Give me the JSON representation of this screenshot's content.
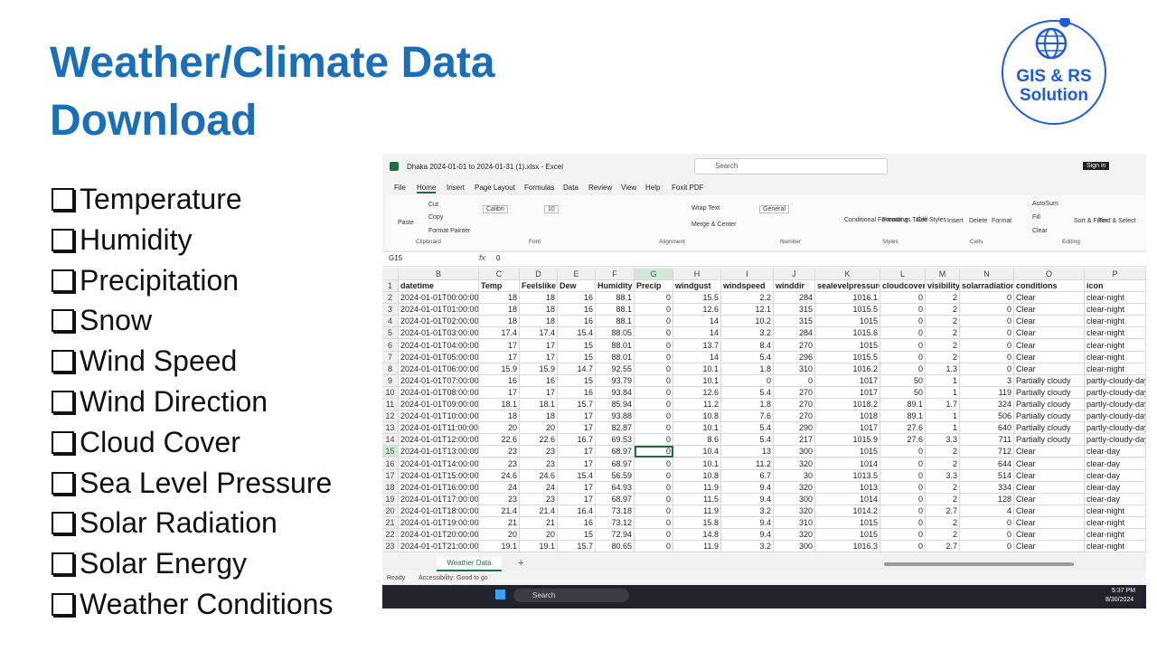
{
  "slide": {
    "title_lines": [
      "Weather/Climate Data",
      "Download"
    ],
    "bullets": [
      "Temperature",
      "Humidity",
      "Precipitation",
      "Snow",
      "Wind Speed",
      "Wind Direction",
      "Cloud Cover",
      "Sea Level Pressure",
      "Solar Radiation",
      "Solar Energy",
      "Weather Conditions"
    ]
  },
  "logo": {
    "line1": "GIS & RS",
    "line2": "Solution"
  },
  "excel": {
    "window_title": "Dhaka 2024-01-01 to 2024-01-31 (1).xlsx  -  Excel",
    "search": "Search",
    "sign_in": "Sign in",
    "menu": [
      "File",
      "Home",
      "Insert",
      "Page Layout",
      "Formulas",
      "Data",
      "Review",
      "View",
      "Help",
      "Foxit PDF"
    ],
    "ribbon": [
      "Paste",
      "Cut",
      "Copy",
      "Format Painter",
      "Calibri",
      "10",
      "Wrap Text",
      "Merge & Center",
      "General",
      "Conditional Formatting",
      "Format as Table",
      "Cell Styles",
      "Insert",
      "Delete",
      "Format",
      "AutoSum",
      "Fill",
      "Clear",
      "Sort & Filter",
      "Find & Select"
    ],
    "groups": [
      "Clipboard",
      "Font",
      "Alignment",
      "Number",
      "Styles",
      "Cells",
      "Editing"
    ],
    "name_box": "G15",
    "fx": "fx",
    "formula": "0",
    "columns": [
      "B",
      "C",
      "D",
      "E",
      "F",
      "G",
      "H",
      "I",
      "J",
      "K",
      "L",
      "M",
      "N",
      "O",
      "P"
    ],
    "row_numbers": [
      1,
      2,
      3,
      4,
      5,
      6,
      7,
      8,
      9,
      10,
      11,
      12,
      13,
      14,
      15,
      16,
      17,
      18,
      19,
      20,
      21,
      22,
      23
    ],
    "header": [
      "datetime",
      "Temp",
      "Feelslike",
      "Dew",
      "Humidity",
      "Precip",
      "windgust",
      "windspeed",
      "winddir",
      "sealevelpressure",
      "cloudcover",
      "visibility",
      "solarradiation",
      "conditions",
      "icon"
    ],
    "rows": [
      [
        "2024-01-01T00:00:00",
        18,
        18,
        16,
        88.1,
        0,
        15.5,
        2.2,
        284,
        1016.1,
        0,
        2,
        0,
        "Clear",
        "clear-night"
      ],
      [
        "2024-01-01T01:00:00",
        18,
        18,
        16,
        88.1,
        0,
        12.6,
        12.1,
        315,
        1015.5,
        0,
        2,
        0,
        "Clear",
        "clear-night"
      ],
      [
        "2024-01-01T02:00:00",
        18,
        18,
        16,
        88.1,
        0,
        14,
        10.2,
        315,
        1015,
        0,
        2,
        0,
        "Clear",
        "clear-night"
      ],
      [
        "2024-01-01T03:00:00",
        17.4,
        17.4,
        15.4,
        88.05,
        0,
        14,
        3.2,
        284,
        1015.6,
        0,
        2,
        0,
        "Clear",
        "clear-night"
      ],
      [
        "2024-01-01T04:00:00",
        17,
        17,
        15,
        88.01,
        0,
        13.7,
        8.4,
        270,
        1015,
        0,
        2,
        0,
        "Clear",
        "clear-night"
      ],
      [
        "2024-01-01T05:00:00",
        17,
        17,
        15,
        88.01,
        0,
        14,
        5.4,
        296,
        1015.5,
        0,
        2,
        0,
        "Clear",
        "clear-night"
      ],
      [
        "2024-01-01T06:00:00",
        15.9,
        15.9,
        14.7,
        92.55,
        0,
        10.1,
        1.8,
        310,
        1016.2,
        0,
        1.3,
        0,
        "Clear",
        "clear-night"
      ],
      [
        "2024-01-01T07:00:00",
        16,
        16,
        15,
        93.79,
        0,
        10.1,
        0,
        0,
        1017,
        50,
        1,
        3,
        "Partially cloudy",
        "partly-cloudy-day"
      ],
      [
        "2024-01-01T08:00:00",
        17,
        17,
        16,
        93.84,
        0,
        12.6,
        5.4,
        270,
        1017,
        50,
        1,
        119,
        "Partially cloudy",
        "partly-cloudy-day"
      ],
      [
        "2024-01-01T09:00:00",
        18.1,
        18.1,
        15.7,
        85.94,
        0,
        11.2,
        1.8,
        270,
        1018.2,
        89.1,
        1.7,
        324,
        "Partially cloudy",
        "partly-cloudy-day"
      ],
      [
        "2024-01-01T10:00:00",
        18,
        18,
        17,
        93.88,
        0,
        10.8,
        7.6,
        270,
        1018,
        89.1,
        1,
        506,
        "Partially cloudy",
        "partly-cloudy-day"
      ],
      [
        "2024-01-01T11:00:00",
        20,
        20,
        17,
        82.87,
        0,
        10.1,
        5.4,
        290,
        1017,
        27.6,
        1,
        640,
        "Partially cloudy",
        "partly-cloudy-day"
      ],
      [
        "2024-01-01T12:00:00",
        22.6,
        22.6,
        16.7,
        69.53,
        0,
        8.6,
        5.4,
        217,
        1015.9,
        27.6,
        3.3,
        711,
        "Partially cloudy",
        "partly-cloudy-day"
      ],
      [
        "2024-01-01T13:00:00",
        23,
        23,
        17,
        68.97,
        0,
        10.4,
        13,
        300,
        1015,
        0,
        2,
        712,
        "Clear",
        "clear-day"
      ],
      [
        "2024-01-01T14:00:00",
        23,
        23,
        17,
        68.97,
        0,
        10.1,
        11.2,
        320,
        1014,
        0,
        2,
        644,
        "Clear",
        "clear-day"
      ],
      [
        "2024-01-01T15:00:00",
        24.6,
        24.6,
        15.4,
        56.59,
        0,
        10.8,
        6.7,
        30,
        1013.5,
        0,
        3.3,
        514,
        "Clear",
        "clear-day"
      ],
      [
        "2024-01-01T16:00:00",
        24,
        24,
        17,
        64.93,
        0,
        11.9,
        9.4,
        320,
        1013,
        0,
        2,
        334,
        "Clear",
        "clear-day"
      ],
      [
        "2024-01-01T17:00:00",
        23,
        23,
        17,
        68.97,
        0,
        11.5,
        9.4,
        300,
        1014,
        0,
        2,
        128,
        "Clear",
        "clear-day"
      ],
      [
        "2024-01-01T18:00:00",
        21.4,
        21.4,
        16.4,
        73.18,
        0,
        11.9,
        3.2,
        320,
        1014.2,
        0,
        2.7,
        4,
        "Clear",
        "clear-night"
      ],
      [
        "2024-01-01T19:00:00",
        21,
        21,
        16,
        73.12,
        0,
        15.8,
        9.4,
        310,
        1015,
        0,
        2,
        0,
        "Clear",
        "clear-night"
      ],
      [
        "2024-01-01T20:00:00",
        20,
        20,
        15,
        72.94,
        0,
        14.8,
        9.4,
        320,
        1015,
        0,
        2,
        0,
        "Clear",
        "clear-night"
      ],
      [
        "2024-01-01T21:00:00",
        19.1,
        19.1,
        15.7,
        80.65,
        0,
        11.9,
        3.2,
        300,
        1016.3,
        0,
        2.7,
        0,
        "Clear",
        "clear-night"
      ]
    ],
    "sheet_tab": "Weather Data",
    "status": [
      "Ready",
      "Accessibility: Good to go"
    ],
    "taskbar": {
      "search": "Search",
      "time": "5:37 PM",
      "date": "8/30/2024"
    }
  }
}
